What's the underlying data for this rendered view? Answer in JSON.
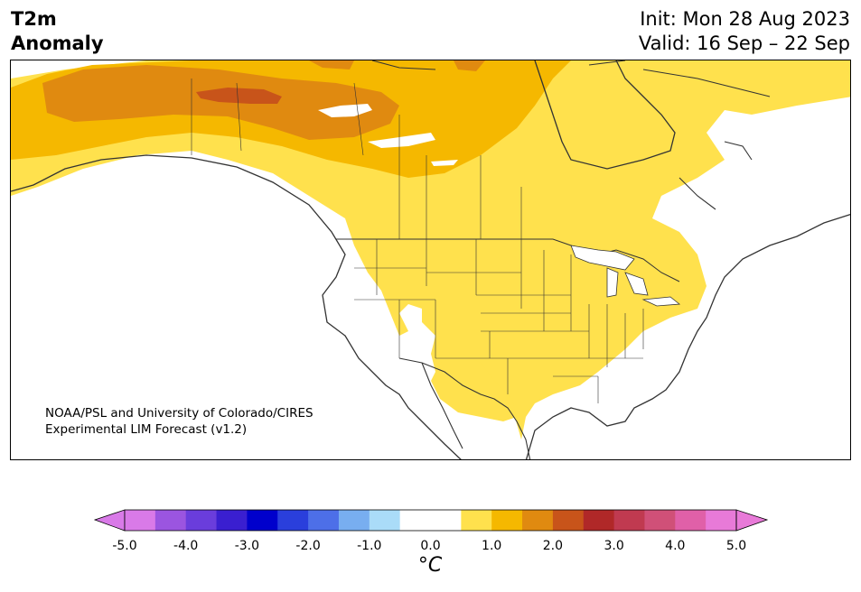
{
  "title": {
    "line1": "T2m",
    "line2": "Anomaly"
  },
  "header": {
    "init": "Init: Mon 28 Aug 2023",
    "valid": "Valid: 16 Sep – 22 Sep"
  },
  "credit": {
    "line1": "NOAA/PSL and University of Colorado/CIRES",
    "line2": "Experimental LIM Forecast (v1.2)"
  },
  "colorbar": {
    "unit": "°C",
    "ticks": [
      "-5.0",
      "-4.0",
      "-3.0",
      "-2.0",
      "-1.0",
      "0.0",
      "1.0",
      "2.0",
      "3.0",
      "4.0",
      "5.0"
    ],
    "under_color": "#d97ae8",
    "over_color": "#e87ad8",
    "colors": [
      "#d97ae8",
      "#9b55e0",
      "#6a3ddc",
      "#3a1fd0",
      "#0000cc",
      "#2a3fdc",
      "#4d6fe8",
      "#78aef0",
      "#aadcf8",
      "#ffffff",
      "#ffffff",
      "#ffe14d",
      "#f5b800",
      "#e08a10",
      "#c8541a",
      "#b02828",
      "#c03a50",
      "#d05078",
      "#e060a8",
      "#e87ad8"
    ]
  }
}
